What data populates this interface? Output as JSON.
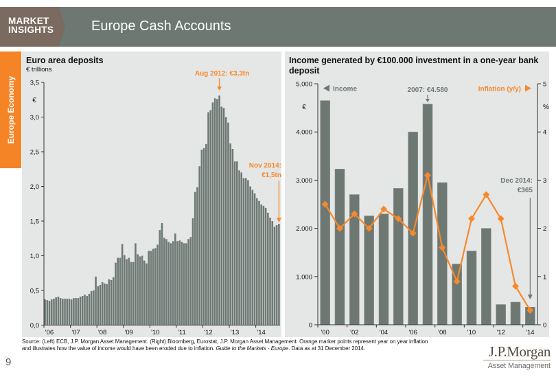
{
  "header": {
    "brand_line1": "MARKET",
    "brand_line2": "INSIGHTS",
    "title": "Europe Cash Accounts"
  },
  "side_tab": {
    "label": "Europe Economy"
  },
  "colors": {
    "header_gray": "#6d7873",
    "brand_brown": "#7b6a5f",
    "accent_orange": "#f58426",
    "line_orange": "#f7892b",
    "bar_gray": "#6f7a75",
    "panel_bg": "#e5e6e6"
  },
  "chart_data": [
    {
      "type": "bar",
      "title": "Euro area deposits",
      "subtitle": "€ trillions",
      "ylabel": "€",
      "xlabel": "",
      "ylim": [
        0,
        3.5
      ],
      "yticks": [
        0,
        0.5,
        1.0,
        1.5,
        2.0,
        2.5,
        3.0,
        3.5
      ],
      "ytick_labels": [
        "0,0",
        "0,5",
        "1,0",
        "1,5",
        "2,0",
        "2,5",
        "3,0",
        "3,5"
      ],
      "xtick_labels": [
        "'06",
        "'07",
        "'08",
        "'09",
        "'10",
        "'11",
        "'12",
        "'13",
        "'14"
      ],
      "frequency": "monthly",
      "x_start": "2006-01",
      "x_end": "2014-11",
      "grid": false,
      "values": [
        0.37,
        0.36,
        0.35,
        0.37,
        0.38,
        0.4,
        0.41,
        0.39,
        0.38,
        0.38,
        0.38,
        0.38,
        0.37,
        0.39,
        0.39,
        0.39,
        0.41,
        0.42,
        0.44,
        0.42,
        0.45,
        0.49,
        0.5,
        0.7,
        0.56,
        0.58,
        0.62,
        0.6,
        0.59,
        0.66,
        0.65,
        0.69,
        0.9,
        0.97,
        0.97,
        1.17,
        1.01,
        0.95,
        0.97,
        0.91,
        0.91,
        1.18,
        1.02,
        0.99,
        1.0,
        0.93,
        0.89,
        1.07,
        1.07,
        1.1,
        1.11,
        1.16,
        1.37,
        1.47,
        1.26,
        1.24,
        1.2,
        1.18,
        1.21,
        1.32,
        1.21,
        1.22,
        1.2,
        1.18,
        1.18,
        1.24,
        1.27,
        1.54,
        1.92,
        1.99,
        2.29,
        2.53,
        2.55,
        2.61,
        3.07,
        3.1,
        3.21,
        3.27,
        3.26,
        3.31,
        3.15,
        3.13,
        3.0,
        2.92,
        2.62,
        2.54,
        2.36,
        2.36,
        2.23,
        2.2,
        2.12,
        2.12,
        2.09,
        2.0,
        1.95,
        1.9,
        1.83,
        1.79,
        1.74,
        1.72,
        1.69,
        1.62,
        1.55,
        1.5,
        1.42,
        1.44,
        1.46
      ],
      "annotations": [
        {
          "lines": [
            "Aug 2012: €3,3tn"
          ],
          "index": 79
        },
        {
          "lines": [
            "Nov 2014:",
            "€1,5tn"
          ],
          "index": 106
        }
      ]
    },
    {
      "type": "bar+line",
      "title": "Income generated by €100.000 investment in a one-year bank deposit",
      "categories": [
        2000,
        2001,
        2002,
        2003,
        2004,
        2005,
        2006,
        2007,
        2008,
        2009,
        2010,
        2011,
        2012,
        2013,
        2014
      ],
      "xtick_labels": [
        "'00",
        "'02",
        "'04",
        "'06",
        "'08",
        "'10",
        "'12",
        "'14"
      ],
      "y_left": {
        "label": "€",
        "lim": [
          0,
          5000
        ],
        "ticks": [
          0,
          1000,
          2000,
          3000,
          4000,
          5000
        ],
        "tick_labels": [
          "0",
          "1.000",
          "2.000",
          "3.000",
          "4.000",
          "5.000"
        ]
      },
      "y_right": {
        "label": "%",
        "lim": [
          0,
          5
        ],
        "ticks": [
          0,
          1,
          2,
          3,
          4,
          5
        ],
        "tick_labels": [
          "0",
          "1",
          "2",
          "3",
          "4",
          "5"
        ]
      },
      "series": [
        {
          "name": "Income",
          "type": "bar",
          "axis": "left",
          "color": "#6d7873",
          "values": [
            4650,
            3230,
            2700,
            2260,
            2300,
            2830,
            4000,
            4580,
            2950,
            1260,
            1530,
            2000,
            420,
            470,
            365
          ]
        },
        {
          "name": "Inflation (y/y)",
          "type": "line",
          "axis": "right",
          "color": "#f7892b",
          "marker": "diamond",
          "values": [
            2.5,
            2.0,
            2.3,
            2.0,
            2.4,
            2.2,
            1.9,
            3.1,
            1.6,
            0.9,
            2.2,
            2.7,
            2.2,
            0.8,
            0.3
          ]
        }
      ],
      "legend_position": "top",
      "grid": false,
      "annotations": [
        {
          "lines": [
            "2007: €4.580"
          ],
          "category_index": 7
        },
        {
          "lines": [
            "Dec 2014:",
            "€365"
          ],
          "category_index": 14
        }
      ]
    }
  ],
  "source": {
    "line1": "Source: (Left) ECB, J.P. Morgan Asset Management. (Right) Bloomberg, Eurostat, J.P. Morgan Asset Management. Orange marker points represent year on year inflation",
    "line2_prefix": "and illustrates how the value of income would have been eroded due to inflation. ",
    "line2_italic": "Guide to the Markets - Europe",
    "line2_suffix": ". Data as at 31 December 2014."
  },
  "footer": {
    "page_number": "9",
    "logo_name": "J.P.Morgan",
    "logo_sub": "Asset Management"
  }
}
